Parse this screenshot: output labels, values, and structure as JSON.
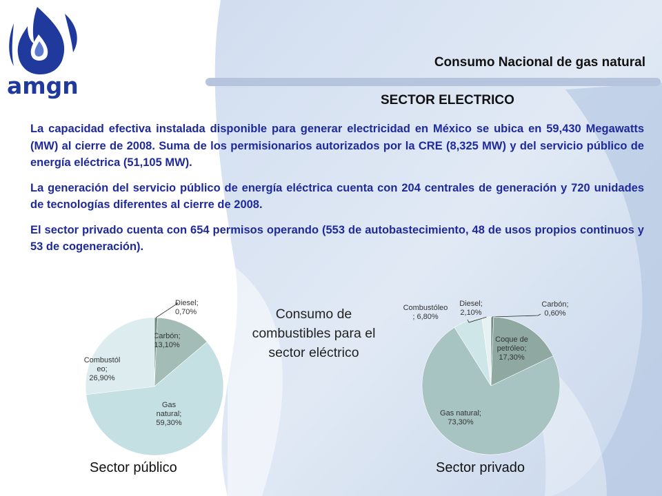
{
  "header": {
    "logo_text": "amgn",
    "title": "Consumo Nacional de gas natural",
    "subtitle": "SECTOR ELECTRICO"
  },
  "body": {
    "paragraphs": [
      "La capacidad efectiva instalada disponible para generar electricidad en México se ubica en 59,430 Megawatts (MW) al cierre de 2008. Suma de los permisionarios autorizados por la CRE (8,325 MW) y del servicio público de energía eléctrica (51,105 MW).",
      "La generación del servicio público de energía eléctrica cuenta con 204 centrales de generación y 720 unidades de tecnologías diferentes al cierre de 2008.",
      "El sector privado cuenta con 654 permisos operando (553 de autobastecimiento, 48 de usos propios continuos y 53 de cogeneración)."
    ]
  },
  "center_title": "Consumo de combustibles para el sector eléctrico",
  "colors": {
    "text_blue": "#1f2a9a",
    "logo_blue": "#1f3a9c",
    "pie_dark": "#97b2ab",
    "pie_mid": "#bfdcdd",
    "pie_light": "#dcecef",
    "pie_pale": "#e8f2f3"
  },
  "chart_data": [
    {
      "type": "pie",
      "title": "Sector público",
      "slices": [
        {
          "label": "Diesel; 0,70%",
          "name": "Diesel",
          "value": 0.7,
          "color": "#6f8a85"
        },
        {
          "label": "Carbón; 13,10%",
          "name": "Carbón",
          "value": 13.1,
          "color": "#a3bdb6"
        },
        {
          "label": "Gas natural; 59,30%",
          "name": "Gas natural",
          "value": 59.3,
          "color": "#c4e0e2"
        },
        {
          "label": "Combustóleo; 26,90%",
          "name": "Combustóleo",
          "value": 26.9,
          "color": "#dcecef"
        }
      ]
    },
    {
      "type": "pie",
      "title": "Sector privado",
      "slices": [
        {
          "label": "Carbón; 0,60%",
          "name": "Carbón",
          "value": 0.6,
          "color": "#6f8a85"
        },
        {
          "label": "Coque de petróleo; 17,30%",
          "name": "Coque de petróleo",
          "value": 17.3,
          "color": "#8fa9a2"
        },
        {
          "label": "Gas natural; 73,30%",
          "name": "Gas natural",
          "value": 73.3,
          "color": "#a7c3c2"
        },
        {
          "label": "Combustóleo ; 6,80%",
          "name": "Combustóleo",
          "value": 6.8,
          "color": "#cfe6e8"
        },
        {
          "label": "Diesel; 2,10%",
          "name": "Diesel",
          "value": 2.1,
          "color": "#e6f1f2"
        }
      ]
    }
  ]
}
